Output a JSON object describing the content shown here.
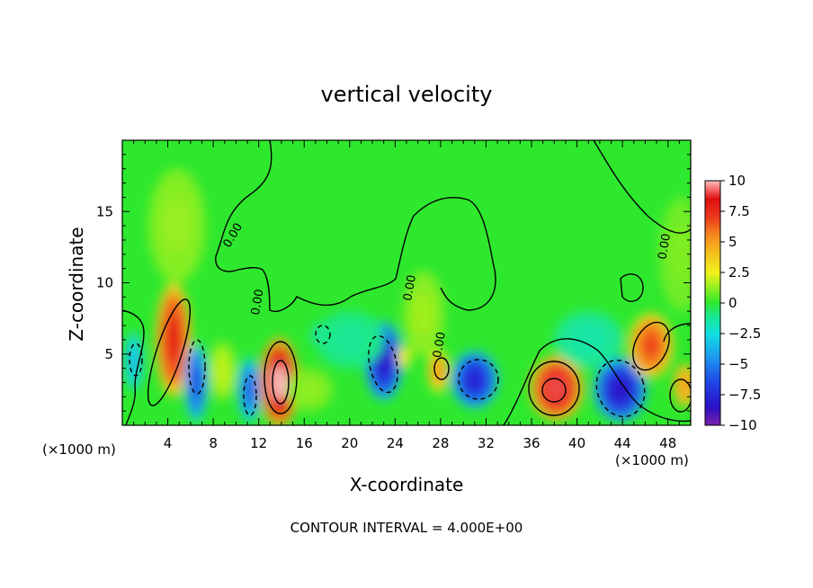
{
  "chart_data": {
    "type": "heatmap",
    "title": "vertical velocity",
    "xlabel": "X-coordinate",
    "ylabel": "Z-coordinate",
    "x_unit_left": "(×1000 m)",
    "x_unit_right": "(×1000 m)",
    "footer": "CONTOUR INTERVAL = 4.000E+00",
    "xlim": [
      0,
      50
    ],
    "ylim": [
      0,
      20
    ],
    "x_ticks": [
      {
        "value": 4,
        "label": "4"
      },
      {
        "value": 8,
        "label": "8"
      },
      {
        "value": 12,
        "label": "12"
      },
      {
        "value": 16,
        "label": "16"
      },
      {
        "value": 20,
        "label": "20"
      },
      {
        "value": 24,
        "label": "24"
      },
      {
        "value": 28,
        "label": "28"
      },
      {
        "value": 32,
        "label": "32"
      },
      {
        "value": 36,
        "label": "36"
      },
      {
        "value": 40,
        "label": "40"
      },
      {
        "value": 44,
        "label": "44"
      },
      {
        "value": 48,
        "label": "48"
      }
    ],
    "y_ticks": [
      {
        "value": 5,
        "label": "5"
      },
      {
        "value": 10,
        "label": "10"
      },
      {
        "value": 15,
        "label": "15"
      }
    ],
    "colorbar": {
      "min": -10,
      "max": 10,
      "ticks": [
        {
          "value": 10,
          "label": "10"
        },
        {
          "value": 7.5,
          "label": "7.5"
        },
        {
          "value": 5,
          "label": "5"
        },
        {
          "value": 2.5,
          "label": "2.5"
        },
        {
          "value": 0,
          "label": "0"
        },
        {
          "value": -2.5,
          "label": "−2.5"
        },
        {
          "value": -5,
          "label": "−5"
        },
        {
          "value": -7.5,
          "label": "−7.5"
        },
        {
          "value": -10,
          "label": "−10"
        }
      ],
      "colors": [
        {
          "v": -10,
          "c": "#7a1fa8"
        },
        {
          "v": -8.5,
          "c": "#2a10c8"
        },
        {
          "v": -6.5,
          "c": "#1f45e6"
        },
        {
          "v": -4.5,
          "c": "#1e96f0"
        },
        {
          "v": -2.5,
          "c": "#10e0e0"
        },
        {
          "v": -1,
          "c": "#1be88a"
        },
        {
          "v": 0,
          "c": "#2ee82e"
        },
        {
          "v": 1.5,
          "c": "#a8f01e"
        },
        {
          "v": 2.5,
          "c": "#f2f21e"
        },
        {
          "v": 4,
          "c": "#f5c21e"
        },
        {
          "v": 5.5,
          "c": "#f58a1e"
        },
        {
          "v": 7,
          "c": "#ec3a1e"
        },
        {
          "v": 8.5,
          "c": "#dd0f0f"
        },
        {
          "v": 9.3,
          "c": "#f56a6a"
        },
        {
          "v": 10,
          "c": "#fbc0c0"
        }
      ]
    },
    "contour_labels": [
      {
        "text": "0.00",
        "x": 10,
        "z": 13.2,
        "angle": -60
      },
      {
        "text": "0.00",
        "x": 12.2,
        "z": 8.6,
        "angle": -80
      },
      {
        "text": "0.00",
        "x": 25.6,
        "z": 9.6,
        "angle": -80
      },
      {
        "text": "0.00",
        "x": 28.2,
        "z": 5.6,
        "angle": -80
      },
      {
        "text": "0.00",
        "x": 48,
        "z": 12.5,
        "angle": -80
      }
    ],
    "cells": [
      {
        "x": 1.0,
        "z": 4.5,
        "sx": 0.8,
        "sz": 2.0,
        "w": -3.5
      },
      {
        "x": 4.5,
        "z": 6.0,
        "sx": 1.2,
        "sz": 3.2,
        "w": 8.0
      },
      {
        "x": 4.8,
        "z": 14.0,
        "sx": 2.5,
        "sz": 4.0,
        "w": 1.3
      },
      {
        "x": 6.5,
        "z": 3.0,
        "sx": 0.8,
        "sz": 2.2,
        "w": -6.5
      },
      {
        "x": 8.8,
        "z": 3.8,
        "sx": 1.2,
        "sz": 2.0,
        "w": 1.8
      },
      {
        "x": 11.2,
        "z": 2.5,
        "sx": 0.8,
        "sz": 1.8,
        "w": -6.0
      },
      {
        "x": 13.8,
        "z": 3.0,
        "sx": 1.3,
        "sz": 2.5,
        "w": 10.5
      },
      {
        "x": 17.5,
        "z": 6.3,
        "sx": 0.8,
        "sz": 0.8,
        "w": -3.5
      },
      {
        "x": 16.5,
        "z": 2.5,
        "sx": 2.0,
        "sz": 1.5,
        "w": 1.2
      },
      {
        "x": 23.0,
        "z": 4.5,
        "sx": 1.3,
        "sz": 2.2,
        "w": -8.5
      },
      {
        "x": 24.8,
        "z": 4.8,
        "sx": 0.6,
        "sz": 0.8,
        "w": 3.0
      },
      {
        "x": 27.8,
        "z": 3.8,
        "sx": 0.7,
        "sz": 1.2,
        "w": 5.5
      },
      {
        "x": 26.5,
        "z": 7.8,
        "sx": 1.8,
        "sz": 3.0,
        "w": 1.4
      },
      {
        "x": 31.0,
        "z": 3.2,
        "sx": 1.6,
        "sz": 1.6,
        "w": -8.0
      },
      {
        "x": 38.2,
        "z": 2.6,
        "sx": 1.8,
        "sz": 1.8,
        "w": 9.0
      },
      {
        "x": 43.8,
        "z": 2.5,
        "sx": 1.8,
        "sz": 1.8,
        "w": -8.5
      },
      {
        "x": 46.5,
        "z": 5.6,
        "sx": 1.5,
        "sz": 1.8,
        "w": 7.0
      },
      {
        "x": 49.5,
        "z": 2.8,
        "sx": 1.0,
        "sz": 1.5,
        "w": 5.0
      },
      {
        "x": 49.2,
        "z": 12.0,
        "sx": 2.0,
        "sz": 4.0,
        "w": 1.0
      },
      {
        "x": 41.0,
        "z": 6.0,
        "sx": 3.0,
        "sz": 2.0,
        "w": -1.5
      },
      {
        "x": 20.0,
        "z": 6.0,
        "sx": 3.0,
        "sz": 2.0,
        "w": -1.2
      }
    ]
  }
}
